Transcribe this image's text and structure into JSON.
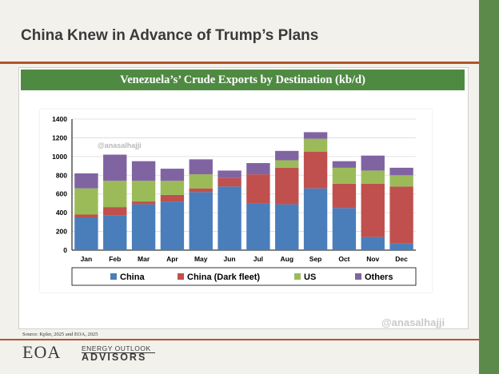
{
  "header": {
    "title": "China Knew in Advance of Trump’s Plans"
  },
  "banner": {
    "text": "Venezuela’s’ Crude Exports by Destination (kb/d)"
  },
  "watermarks": {
    "chart": "@anasalhajji",
    "slide": "@anasalhajji"
  },
  "footer": {
    "source": "Source:  Kpler, 2025 and EOA, 2025"
  },
  "logo": {
    "letters": "EOA",
    "line1": "ENERGY OUTLOOK",
    "line2": "ADVISORS"
  },
  "colors": {
    "China": "#4a7ebb",
    "China (Dark fleet)": "#c0504d",
    "US": "#9bbb59",
    "Others": "#8064a2"
  },
  "chart_data": {
    "type": "bar",
    "stacked": true,
    "categories": [
      "Jan",
      "Feb",
      "Mar",
      "Apr",
      "May",
      "Jun",
      "Jul",
      "Aug",
      "Sep",
      "Oct",
      "Nov",
      "Dec"
    ],
    "series": [
      {
        "name": "China",
        "values": [
          350,
          370,
          490,
          520,
          620,
          680,
          500,
          490,
          660,
          450,
          140,
          70
        ]
      },
      {
        "name": "China (Dark fleet)",
        "values": [
          30,
          90,
          30,
          70,
          40,
          90,
          310,
          390,
          390,
          260,
          570,
          610
        ]
      },
      {
        "name": "US",
        "values": [
          280,
          280,
          220,
          150,
          150,
          0,
          0,
          80,
          140,
          170,
          140,
          120
        ]
      },
      {
        "name": "Others",
        "values": [
          160,
          280,
          210,
          130,
          160,
          80,
          120,
          100,
          70,
          70,
          160,
          80
        ]
      }
    ],
    "ylim": [
      0,
      1400
    ],
    "yticks": [
      0,
      200,
      400,
      600,
      800,
      1000,
      1200,
      1400
    ],
    "grid": true,
    "legend": "bottom"
  }
}
